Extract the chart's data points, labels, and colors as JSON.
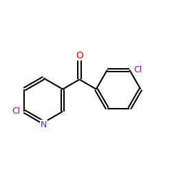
{
  "background_color": "#ffffff",
  "bond_color": "#000000",
  "atom_colors": {
    "O": "#ff0000",
    "N": "#3333ff",
    "Cl_pyridine": "#9900cc",
    "Cl_phenyl": "#9900cc"
  },
  "figsize": [
    2.5,
    2.5
  ],
  "dpi": 100
}
